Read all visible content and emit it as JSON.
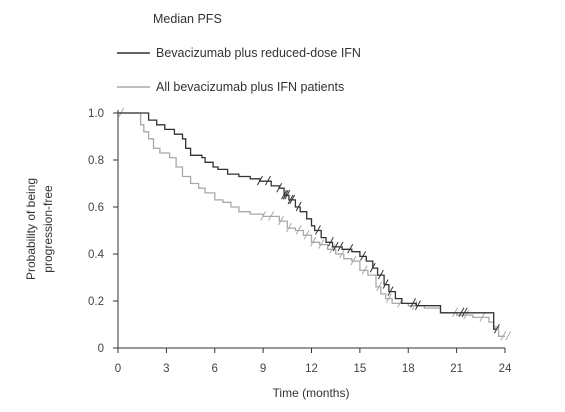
{
  "chart_data": {
    "type": "line",
    "title": "",
    "legend": {
      "title": "Median PFS",
      "placement": "top-left",
      "entries": [
        {
          "label": "Bevacizumab plus reduced-dose IFN",
          "color": "#333333"
        },
        {
          "label": "All bevacizumab plus IFN patients",
          "color": "#a9a9a9"
        }
      ]
    },
    "xlabel": "Time (months)",
    "ylabel_lines": [
      "Probability of being",
      "progression-free"
    ],
    "xlim": [
      0,
      24
    ],
    "ylim": [
      0,
      1.0
    ],
    "x_ticks": [
      "0",
      "3",
      "6",
      "9",
      "12",
      "15",
      "18",
      "21",
      "24"
    ],
    "y_ticks": [
      "0",
      "0.2",
      "0.4",
      "0.6",
      "0.8",
      "1.0"
    ],
    "grid": false,
    "step": true,
    "series": [
      {
        "name": "Bevacizumab plus reduced-dose IFN",
        "color": "#333333",
        "points": [
          [
            0,
            1.0
          ],
          [
            1.8,
            1.0
          ],
          [
            1.9,
            0.97
          ],
          [
            2.4,
            0.95
          ],
          [
            2.9,
            0.93
          ],
          [
            3.5,
            0.91
          ],
          [
            4.0,
            0.89
          ],
          [
            4.2,
            0.85
          ],
          [
            4.5,
            0.82
          ],
          [
            5.2,
            0.81
          ],
          [
            5.4,
            0.79
          ],
          [
            5.9,
            0.77
          ],
          [
            6.2,
            0.76
          ],
          [
            6.8,
            0.74
          ],
          [
            7.5,
            0.73
          ],
          [
            8.2,
            0.72
          ],
          [
            8.8,
            0.71
          ],
          [
            9.5,
            0.69
          ],
          [
            10.0,
            0.68
          ],
          [
            10.3,
            0.65
          ],
          [
            10.6,
            0.63
          ],
          [
            11.0,
            0.6
          ],
          [
            11.3,
            0.58
          ],
          [
            11.7,
            0.55
          ],
          [
            12.0,
            0.52
          ],
          [
            12.2,
            0.5
          ],
          [
            12.6,
            0.47
          ],
          [
            12.9,
            0.45
          ],
          [
            13.3,
            0.43
          ],
          [
            13.9,
            0.42
          ],
          [
            14.5,
            0.41
          ],
          [
            15.0,
            0.39
          ],
          [
            15.4,
            0.37
          ],
          [
            15.8,
            0.34
          ],
          [
            16.1,
            0.31
          ],
          [
            16.5,
            0.27
          ],
          [
            16.8,
            0.24
          ],
          [
            17.2,
            0.21
          ],
          [
            17.6,
            0.19
          ],
          [
            18.5,
            0.18
          ],
          [
            20.0,
            0.15
          ],
          [
            20.4,
            0.15
          ],
          [
            23.3,
            0.15
          ],
          [
            23.3,
            0.08
          ],
          [
            23.5,
            0.08
          ]
        ],
        "censored": [
          8.8,
          9.3,
          10.0,
          10.3,
          10.4,
          10.5,
          10.7,
          10.8,
          11.2,
          12.4,
          13.2,
          13.5,
          13.8,
          14.4,
          15.2,
          15.8,
          16.3,
          16.6,
          16.9,
          18.3,
          18.6,
          21.3,
          21.5,
          23.5
        ]
      },
      {
        "name": "All bevacizumab plus IFN patients",
        "color": "#a9a9a9",
        "points": [
          [
            0,
            1.0
          ],
          [
            1.2,
            1.0
          ],
          [
            1.4,
            0.95
          ],
          [
            1.6,
            0.92
          ],
          [
            1.9,
            0.89
          ],
          [
            2.2,
            0.85
          ],
          [
            2.6,
            0.83
          ],
          [
            3.2,
            0.81
          ],
          [
            3.6,
            0.77
          ],
          [
            4.0,
            0.73
          ],
          [
            4.5,
            0.7
          ],
          [
            5.0,
            0.68
          ],
          [
            5.4,
            0.66
          ],
          [
            6.0,
            0.63
          ],
          [
            6.5,
            0.62
          ],
          [
            7.0,
            0.6
          ],
          [
            7.5,
            0.58
          ],
          [
            8.2,
            0.57
          ],
          [
            9.0,
            0.56
          ],
          [
            10.0,
            0.54
          ],
          [
            10.5,
            0.51
          ],
          [
            11.0,
            0.5
          ],
          [
            11.5,
            0.48
          ],
          [
            12.0,
            0.45
          ],
          [
            12.5,
            0.44
          ],
          [
            13.0,
            0.42
          ],
          [
            13.5,
            0.4
          ],
          [
            14.0,
            0.38
          ],
          [
            14.5,
            0.37
          ],
          [
            15.0,
            0.33
          ],
          [
            15.5,
            0.31
          ],
          [
            16.0,
            0.26
          ],
          [
            16.3,
            0.23
          ],
          [
            16.6,
            0.21
          ],
          [
            17.0,
            0.19
          ],
          [
            18.0,
            0.18
          ],
          [
            19.0,
            0.17
          ],
          [
            20.0,
            0.15
          ],
          [
            21.0,
            0.14
          ],
          [
            22.0,
            0.13
          ],
          [
            23.0,
            0.11
          ],
          [
            23.3,
            0.09
          ],
          [
            23.6,
            0.05
          ],
          [
            24.0,
            0.05
          ]
        ],
        "censored": [
          0.2,
          9.0,
          9.5,
          10.1,
          10.6,
          11.2,
          11.7,
          12.1,
          12.6,
          13.3,
          13.9,
          14.6,
          15.3,
          16.2,
          16.8,
          17.5,
          18.4,
          20.9,
          21.6,
          22.6,
          23.9,
          24.2
        ]
      }
    ]
  }
}
